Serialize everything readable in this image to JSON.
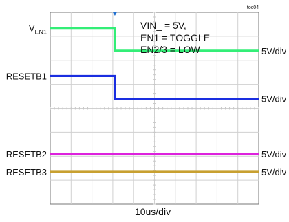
{
  "chart_data": {
    "type": "line",
    "figure_id": "toc04",
    "annotation": [
      "VIN_ = 5V,",
      "EN1 = TOGGLE",
      "EN2/3 = LOW"
    ],
    "xlabel": "10us/div",
    "x_divisions": 10,
    "y_divisions": 8,
    "xlim": [
      0,
      10
    ],
    "ylim": [
      0,
      8
    ],
    "trigger_position_div": 3.1,
    "series": [
      {
        "name": "V",
        "name_sub": "EN1",
        "color": "#33ee77",
        "x": [
          0,
          3.1,
          3.1,
          10
        ],
        "y": [
          7.35,
          7.35,
          6.4,
          6.4
        ],
        "scale": "5V/div"
      },
      {
        "name": "RESETB1",
        "color": "#1a2ee0",
        "x": [
          0,
          3.1,
          3.1,
          10
        ],
        "y": [
          5.35,
          5.35,
          4.4,
          4.4
        ],
        "scale": "5V/div"
      },
      {
        "name": "RESETB2",
        "color": "#dd22dd",
        "x": [
          0,
          10
        ],
        "y": [
          2.1,
          2.1
        ],
        "scale": "5V/div"
      },
      {
        "name": "RESETB3",
        "color": "#c8a030",
        "x": [
          0,
          10
        ],
        "y": [
          1.35,
          1.35
        ],
        "scale": "5V/div"
      }
    ]
  }
}
